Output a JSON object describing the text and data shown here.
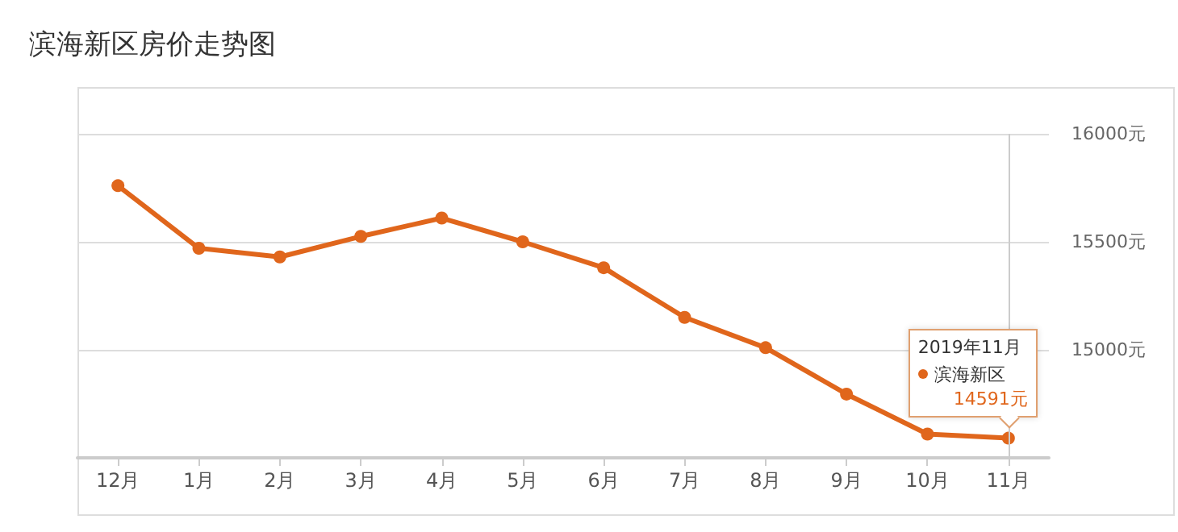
{
  "chart_data": {
    "type": "line",
    "title": "滨海新区房价走势图",
    "categories": [
      "12月",
      "1月",
      "2月",
      "3月",
      "4月",
      "5月",
      "6月",
      "7月",
      "8月",
      "9月",
      "10月",
      "11月"
    ],
    "series": [
      {
        "name": "滨海新区",
        "color": "#e0661c",
        "values": [
          15760,
          15470,
          15430,
          15525,
          15610,
          15500,
          15380,
          15150,
          15010,
          14795,
          14610,
          14591
        ],
        "value_labels": [
          null,
          null,
          null,
          null,
          null,
          null,
          null,
          null,
          null,
          null,
          null,
          "14591元"
        ]
      }
    ],
    "ylim": [
      14500,
      16000
    ],
    "yticks": [
      {
        "value": 14500,
        "label": null
      },
      {
        "value": 15000,
        "label": "15000元"
      },
      {
        "value": 15500,
        "label": "15500元"
      },
      {
        "value": 16000,
        "label": "16000元"
      }
    ],
    "grid": "y",
    "marker": "circle",
    "line_style": "solid",
    "ref_lines": [
      {
        "axis": "x",
        "value": "11月",
        "color": "#cccccc"
      }
    ],
    "annotations": [
      "2019年11月"
    ]
  }
}
